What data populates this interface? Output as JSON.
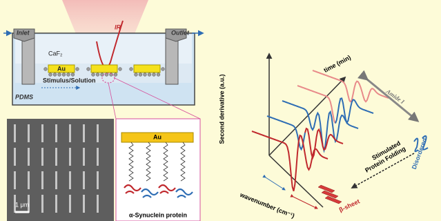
{
  "device": {
    "inlet": "Inlet",
    "outlet": "Outlet",
    "beam": "IR",
    "window": "CaF₂",
    "electrode": "Au",
    "flow": "Stimulus/Solution",
    "substrate": "PDMS"
  },
  "micrograph": {
    "scale_bar": "1 μm"
  },
  "inset": {
    "electrode": "Au",
    "protein": "α-Synuclein protein"
  },
  "plot": {
    "y_axis": "Second derivative (a.u.)",
    "time_axis": "time (min)",
    "band": "Amide I",
    "x_axis": "wavenumber (cm⁻¹)",
    "beta_sheet": "β-sheet",
    "folding": [
      "Stimulated",
      "Protein Folding"
    ],
    "disordered": "Disordered"
  }
}
